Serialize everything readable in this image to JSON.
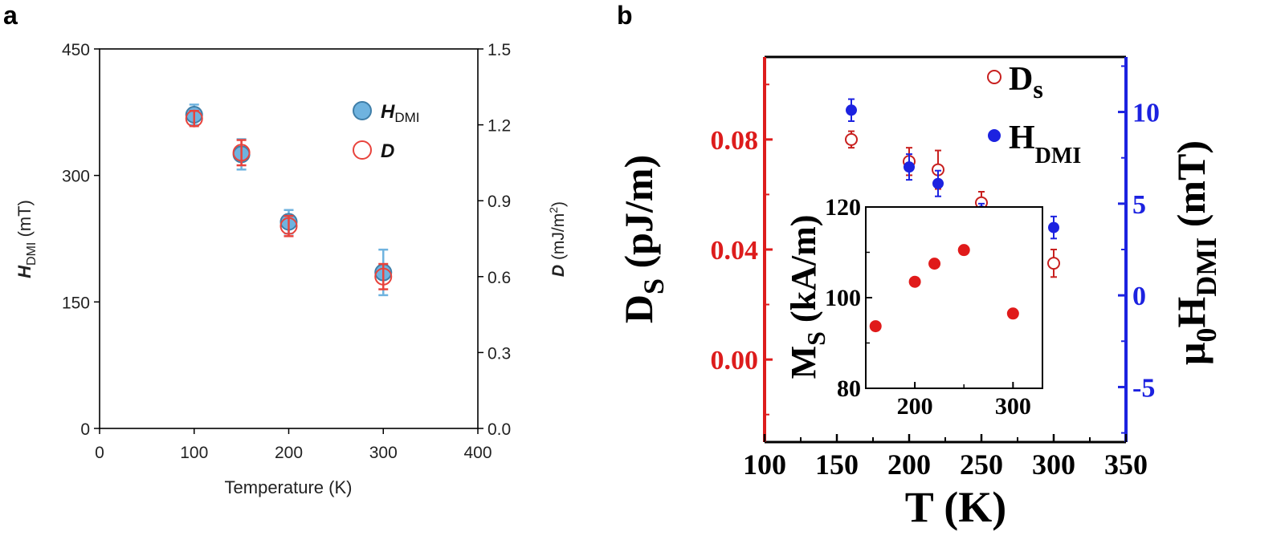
{
  "chart_data": [
    {
      "panel_label": "a",
      "type": "scatter",
      "xlabel": "Temperature (K)",
      "xlim": [
        0,
        400
      ],
      "xticks": [
        "0",
        "100",
        "200",
        "300",
        "400"
      ],
      "ylabel_left": {
        "main": "H",
        "sub": "DMI",
        "unit": " (mT)"
      },
      "ylim_left": [
        0,
        450
      ],
      "yticks_left": [
        "0",
        "150",
        "300",
        "450"
      ],
      "ylabel_right": {
        "main": "D",
        "unit": " (mJ/m",
        "sup": "2",
        "close": ")"
      },
      "ylim_right": [
        0,
        1.5
      ],
      "yticks_right": [
        "0.0",
        "0.3",
        "0.6",
        "0.9",
        "1.2",
        "1.5"
      ],
      "legend_position": "upper-right",
      "grid": false,
      "series": [
        {
          "name": {
            "main": "H",
            "sub": "DMI"
          },
          "axis": "left",
          "marker": "filled-circle",
          "color": "#6fb3df",
          "edge": "#3f7ea8",
          "x": [
            100,
            150,
            200,
            300
          ],
          "y": [
            372,
            325,
            245,
            185
          ],
          "err": [
            12,
            18,
            14,
            27
          ]
        },
        {
          "name": {
            "main": "D",
            "sub": ""
          },
          "axis": "right",
          "marker": "open-circle",
          "color": "#e8433c",
          "x": [
            100,
            150,
            200,
            300
          ],
          "y": [
            1.225,
            1.09,
            0.8,
            0.6
          ],
          "err": [
            0.03,
            0.05,
            0.04,
            0.05
          ]
        }
      ]
    },
    {
      "panel_label": "b",
      "type": "scatter",
      "xlabel": "T (K)",
      "xlim": [
        100,
        350
      ],
      "xticks": [
        "100",
        "150",
        "200",
        "250",
        "300",
        "350"
      ],
      "ylabel_left": {
        "main": "D",
        "sub": "S",
        "unit": " (pJ/m)"
      },
      "ylim_left": [
        -0.03,
        0.11
      ],
      "yticks_left": [
        "0.00",
        "0.04",
        "0.08"
      ],
      "left_color": "#dd1c1c",
      "ylabel_right": {
        "pre": "μ",
        "presub": "0",
        "main": "H",
        "sub": "DMI",
        "unit": " (mT)"
      },
      "ylim_right": [
        -8,
        13
      ],
      "yticks_right": [
        "-5",
        "0",
        "5",
        "10"
      ],
      "right_color": "#1c22e0",
      "legend_position": "upper-right",
      "grid": false,
      "series": [
        {
          "name": {
            "main": "D",
            "sub": "s"
          },
          "axis": "left",
          "marker": "open-circle",
          "color": "#c8201f",
          "x": [
            160,
            200,
            220,
            250,
            300
          ],
          "y": [
            0.08,
            0.072,
            0.069,
            0.057,
            0.035
          ],
          "err": [
            0.003,
            0.005,
            0.007,
            0.004,
            0.005
          ]
        },
        {
          "name": {
            "main": "H",
            "sub": "DMI"
          },
          "axis": "right",
          "marker": "filled-circle",
          "color": "#1c22e0",
          "x": [
            160,
            200,
            220,
            250,
            300
          ],
          "y": [
            10.1,
            7.0,
            6.1,
            4.6,
            3.7
          ],
          "err": [
            0.6,
            0.7,
            0.7,
            0.4,
            0.6
          ]
        }
      ],
      "inset": {
        "type": "scatter",
        "xlim": [
          150,
          330
        ],
        "xticks": [
          "200",
          "300"
        ],
        "ylim": [
          80,
          120
        ],
        "yticks": [
          "80",
          "100",
          "120"
        ],
        "ylabel": {
          "main": "M",
          "sub": "S",
          "unit": " (kA/m)"
        },
        "color": "#e01a1a",
        "x": [
          160,
          200,
          220,
          250,
          300
        ],
        "y": [
          93.7,
          103.5,
          107.5,
          110.5,
          96.5
        ]
      }
    }
  ]
}
